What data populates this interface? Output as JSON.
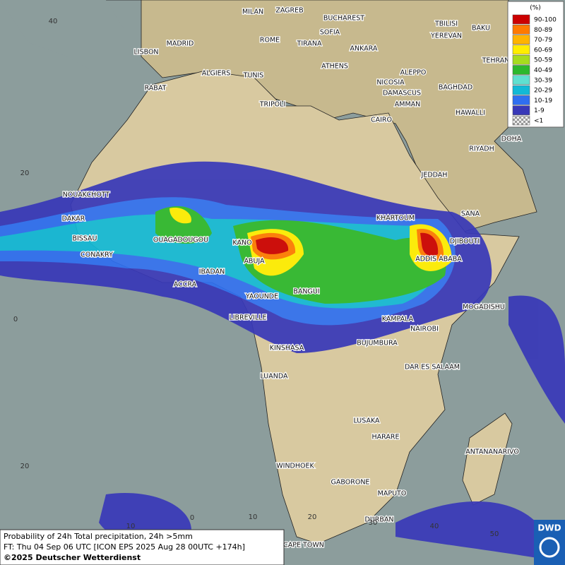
{
  "legend": {
    "title": "(%)",
    "items": [
      {
        "label": "90-100",
        "color": "#cc0000"
      },
      {
        "label": "80-89",
        "color": "#ff7a00"
      },
      {
        "label": "70-79",
        "color": "#ffb400"
      },
      {
        "label": "60-69",
        "color": "#ffee00"
      },
      {
        "label": "50-59",
        "color": "#a6dc1e"
      },
      {
        "label": "40-49",
        "color": "#2cb82c"
      },
      {
        "label": "30-39",
        "color": "#5fe0d0"
      },
      {
        "label": "20-29",
        "color": "#12b9d6"
      },
      {
        "label": "10-19",
        "color": "#2f6ff0"
      },
      {
        "label": "1-9",
        "color": "#3838b8"
      },
      {
        "label": "<1",
        "color": "#bdbdbd"
      }
    ]
  },
  "grid_labels": [
    "40",
    "20",
    "0",
    "20",
    "10",
    "0",
    "10",
    "20",
    "30",
    "40",
    "50"
  ],
  "cities": [
    "MILAN",
    "ZAGREB",
    "BUCHAREST",
    "SOFIA",
    "ROME",
    "TIRANA",
    "MADRID",
    "LISBON",
    "ANKARA",
    "TBILISI",
    "BAKU",
    "YEREVAN",
    "TEHRAN",
    "ATHENS",
    "ALGIERS",
    "TUNIS",
    "ALEPPO",
    "RABAT",
    "NICOSIA",
    "BAGHDAD",
    "DAMASCUS",
    "TRIPOLI",
    "AMMAN",
    "HAWALLI",
    "CAIRO",
    "DOHA",
    "RIYADH",
    "JEDDAH",
    "NOUAKCHOTT",
    "SANA",
    "KHARTOUM",
    "DAKAR",
    "BISSAU",
    "DJIBOUTI",
    "OUAGADOUGOU",
    "KANO",
    "CONAKRY",
    "ADDIS ABABA",
    "ABUJA",
    "IBADAN",
    "ACCRA",
    "BANGUI",
    "YAOUNDE",
    "MOGADISHU",
    "LIBREVILLE",
    "KAMPALA",
    "NAIROBI",
    "BUJUMBURA",
    "KINSHASA",
    "DAR ES SALAAM",
    "LUANDA",
    "LUSAKA",
    "HARARE",
    "ANTANANARIVO",
    "WINDHOEK",
    "GABORONE",
    "MAPUTO",
    "DURBAN",
    "CAPE TOWN"
  ],
  "caption": {
    "line1": "Probability of 24h Total precipitation, 24h >5mm",
    "line2": "FT: Thu 04 Sep 06 UTC [ICON EPS 2025 Aug 28 00UTC +174h]",
    "line3": "©2025 Deutscher Wetterdienst"
  },
  "logo": "DWD"
}
